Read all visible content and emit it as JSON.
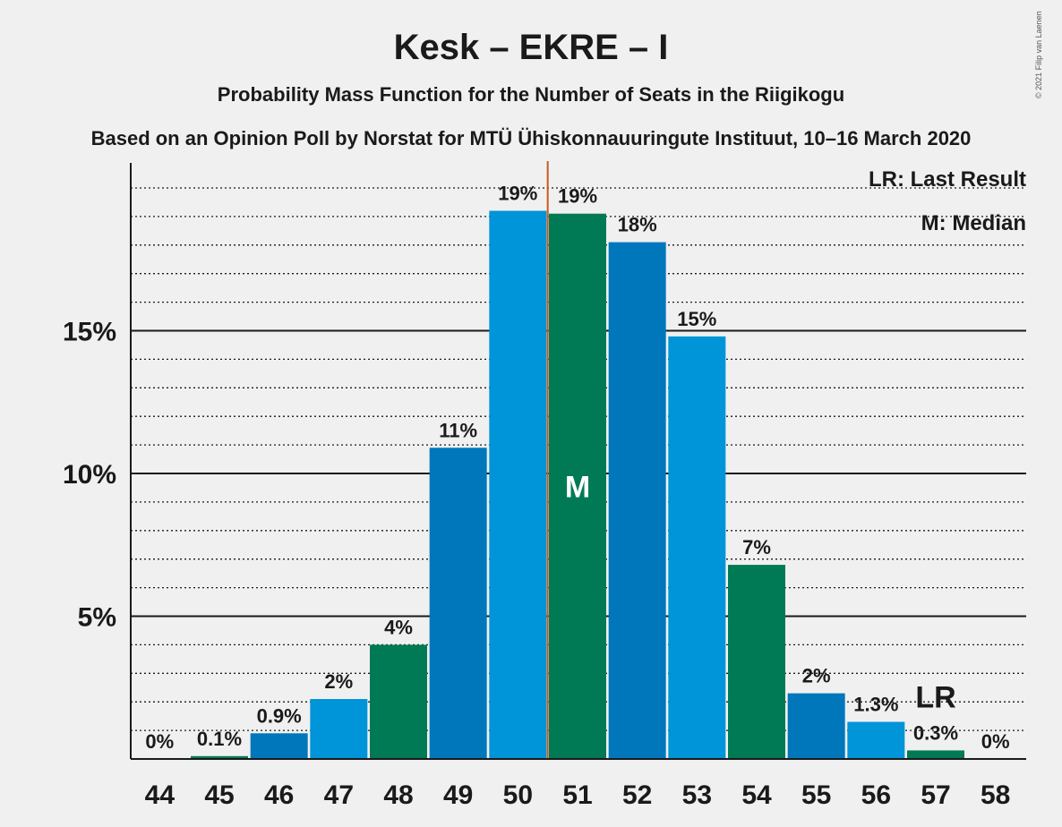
{
  "chart_data": {
    "type": "bar",
    "title": "Kesk – EKRE – I",
    "subtitle": "Probability Mass Function for the Number of Seats in the Riigikogu",
    "subtitle2": "Based on an Opinion Poll by Norstat for MTÜ Ühiskonnauuringute Instituut, 10–16 March 2020",
    "copyright": "© 2021 Filip van Laenen",
    "legend": {
      "lr": "LR: Last Result",
      "median": "M: Median",
      "position": "top-right"
    },
    "categories": [
      "44",
      "45",
      "46",
      "47",
      "48",
      "49",
      "50",
      "51",
      "52",
      "53",
      "54",
      "55",
      "56",
      "57",
      "58"
    ],
    "values": [
      0,
      0.1,
      0.9,
      2.1,
      4.0,
      10.9,
      19.2,
      19.1,
      18.1,
      14.8,
      6.8,
      2.3,
      1.3,
      0.3,
      0
    ],
    "labels": [
      "0%",
      "0.1%",
      "0.9%",
      "2%",
      "4%",
      "11%",
      "19%",
      "19%",
      "18%",
      "15%",
      "7%",
      "2%",
      "1.3%",
      "0.3%",
      "0%"
    ],
    "bar_colors": [
      "#0077bb",
      "#007a55",
      "#0077bb",
      "#0094d8",
      "#007a55",
      "#0077bb",
      "#0094d8",
      "#007a55",
      "#0077bb",
      "#0094d8",
      "#007a55",
      "#0077bb",
      "#0094d8",
      "#007a55",
      "#0077bb"
    ],
    "ylim": [
      0,
      21
    ],
    "yticks": [
      5,
      10,
      15
    ],
    "ytick_labels": [
      "5%",
      "10%",
      "15%"
    ],
    "minor_grid_step": 1,
    "grid": true,
    "median_seat": "51",
    "median_marker": "M",
    "last_result_seat": "57",
    "last_result_marker": "LR",
    "median_line_color": "#c85a1e"
  }
}
